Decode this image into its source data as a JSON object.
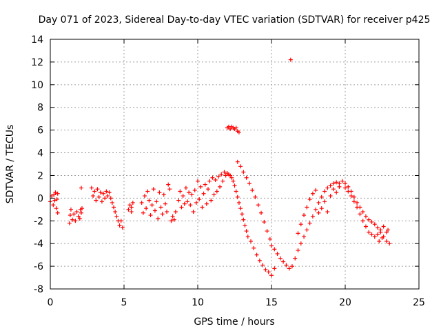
{
  "chart_data": {
    "type": "scatter",
    "title": "Day 071 of 2023, Sidereal Day-to-day VTEC variation (SDTVAR) for receiver p425",
    "xlabel": "GPS time / hours",
    "ylabel": "SDTVAR / TECUs",
    "xlim": [
      0,
      25
    ],
    "ylim": [
      -8,
      14
    ],
    "xticks": [
      0,
      5,
      10,
      15,
      20,
      25
    ],
    "yticks": [
      -8,
      -6,
      -4,
      -2,
      0,
      2,
      4,
      6,
      8,
      10,
      12,
      14
    ],
    "grid": true,
    "marker": "+",
    "series": [
      {
        "name": "SDTVAR",
        "color": "#ff0000",
        "points": [
          [
            0.0,
            -0.3
          ],
          [
            0.1,
            0.2
          ],
          [
            0.2,
            -0.6
          ],
          [
            0.25,
            0.3
          ],
          [
            0.3,
            -0.2
          ],
          [
            0.35,
            0.5
          ],
          [
            0.4,
            -0.9
          ],
          [
            0.45,
            -0.1
          ],
          [
            0.5,
            -1.3
          ],
          [
            0.5,
            0.4
          ],
          [
            1.3,
            -2.2
          ],
          [
            1.35,
            -1.5
          ],
          [
            1.4,
            -1.0
          ],
          [
            1.5,
            -1.9
          ],
          [
            1.6,
            -1.4
          ],
          [
            1.7,
            -2.0
          ],
          [
            1.8,
            -1.2
          ],
          [
            1.9,
            -1.6
          ],
          [
            2.0,
            -1.8
          ],
          [
            2.05,
            -1.0
          ],
          [
            2.1,
            -1.3
          ],
          [
            2.15,
            -0.9
          ],
          [
            2.1,
            0.9
          ],
          [
            2.8,
            0.9
          ],
          [
            2.9,
            0.2
          ],
          [
            3.0,
            0.6
          ],
          [
            3.1,
            -0.2
          ],
          [
            3.2,
            0.8
          ],
          [
            3.3,
            0.1
          ],
          [
            3.4,
            0.5
          ],
          [
            3.5,
            -0.3
          ],
          [
            3.6,
            0.4
          ],
          [
            3.7,
            0.0
          ],
          [
            3.8,
            0.6
          ],
          [
            3.9,
            0.2
          ],
          [
            4.0,
            0.5
          ],
          [
            4.1,
            0.0
          ],
          [
            4.2,
            -0.4
          ],
          [
            4.3,
            -0.8
          ],
          [
            4.4,
            -1.2
          ],
          [
            4.5,
            -1.6
          ],
          [
            4.6,
            -2.0
          ],
          [
            4.7,
            -2.4
          ],
          [
            4.8,
            -2.0
          ],
          [
            4.9,
            -2.6
          ],
          [
            5.3,
            -1.0
          ],
          [
            5.4,
            -0.6
          ],
          [
            5.5,
            -1.2
          ],
          [
            5.6,
            -0.4
          ],
          [
            5.5,
            -0.8
          ],
          [
            6.2,
            -0.4
          ],
          [
            6.3,
            -1.3
          ],
          [
            6.4,
            0.2
          ],
          [
            6.5,
            -0.9
          ],
          [
            6.6,
            0.6
          ],
          [
            6.7,
            -0.2
          ],
          [
            6.8,
            -1.5
          ],
          [
            6.9,
            -0.6
          ],
          [
            7.0,
            0.8
          ],
          [
            7.1,
            -1.1
          ],
          [
            7.2,
            -0.3
          ],
          [
            7.3,
            -1.8
          ],
          [
            7.4,
            0.5
          ],
          [
            7.5,
            -0.8
          ],
          [
            7.6,
            -1.4
          ],
          [
            7.7,
            0.3
          ],
          [
            7.8,
            -0.5
          ],
          [
            7.9,
            -1.2
          ],
          [
            8.0,
            1.2
          ],
          [
            8.1,
            0.8
          ],
          [
            8.2,
            -2.0
          ],
          [
            8.3,
            -1.6
          ],
          [
            8.4,
            -1.9
          ],
          [
            8.5,
            -1.2
          ],
          [
            8.7,
            -0.2
          ],
          [
            8.8,
            0.6
          ],
          [
            8.9,
            -0.8
          ],
          [
            9.0,
            0.2
          ],
          [
            9.1,
            -0.5
          ],
          [
            9.2,
            0.9
          ],
          [
            9.3,
            -0.3
          ],
          [
            9.4,
            0.5
          ],
          [
            9.5,
            -0.6
          ],
          [
            9.6,
            0.3
          ],
          [
            9.7,
            -1.2
          ],
          [
            9.8,
            0.7
          ],
          [
            9.9,
            -0.4
          ],
          [
            10.0,
            1.5
          ],
          [
            10.1,
            -0.1
          ],
          [
            10.2,
            1.0
          ],
          [
            10.3,
            -0.8
          ],
          [
            10.4,
            0.4
          ],
          [
            10.5,
            1.2
          ],
          [
            10.6,
            -0.5
          ],
          [
            10.7,
            0.8
          ],
          [
            10.8,
            1.5
          ],
          [
            10.9,
            -0.2
          ],
          [
            11.0,
            1.8
          ],
          [
            11.1,
            0.3
          ],
          [
            11.2,
            1.6
          ],
          [
            11.3,
            0.6
          ],
          [
            11.4,
            1.9
          ],
          [
            11.5,
            1.0
          ],
          [
            11.6,
            2.1
          ],
          [
            11.7,
            1.5
          ],
          [
            11.8,
            2.3
          ],
          [
            11.9,
            2.0
          ],
          [
            12.0,
            2.2
          ],
          [
            12.1,
            2.1
          ],
          [
            12.2,
            2.0
          ],
          [
            12.3,
            1.8
          ],
          [
            12.4,
            1.5
          ],
          [
            12.5,
            1.1
          ],
          [
            12.6,
            0.6
          ],
          [
            12.7,
            0.1
          ],
          [
            12.8,
            -0.4
          ],
          [
            12.9,
            -0.9
          ],
          [
            13.0,
            -1.4
          ],
          [
            13.1,
            -1.9
          ],
          [
            13.2,
            -2.4
          ],
          [
            13.3,
            -2.9
          ],
          [
            13.4,
            -3.4
          ],
          [
            12.0,
            6.2
          ],
          [
            12.1,
            6.3
          ],
          [
            12.2,
            6.1
          ],
          [
            12.3,
            6.3
          ],
          [
            12.4,
            6.2
          ],
          [
            12.5,
            6.1
          ],
          [
            12.6,
            6.2
          ],
          [
            12.7,
            5.9
          ],
          [
            12.8,
            5.8
          ],
          [
            12.7,
            3.2
          ],
          [
            12.9,
            2.8
          ],
          [
            13.1,
            2.3
          ],
          [
            13.3,
            1.8
          ],
          [
            13.5,
            1.3
          ],
          [
            13.7,
            0.7
          ],
          [
            13.9,
            0.1
          ],
          [
            14.1,
            -0.6
          ],
          [
            14.3,
            -1.3
          ],
          [
            14.5,
            -2.1
          ],
          [
            14.7,
            -2.9
          ],
          [
            14.9,
            -3.6
          ],
          [
            15.0,
            -4.2
          ],
          [
            15.2,
            -4.5
          ],
          [
            15.4,
            -4.9
          ],
          [
            13.6,
            -3.8
          ],
          [
            13.8,
            -4.4
          ],
          [
            14.0,
            -5.0
          ],
          [
            14.2,
            -5.5
          ],
          [
            14.4,
            -5.9
          ],
          [
            14.6,
            -6.3
          ],
          [
            14.8,
            -6.5
          ],
          [
            15.0,
            -6.8
          ],
          [
            15.2,
            -6.2
          ],
          [
            16.3,
            12.2
          ],
          [
            15.6,
            -5.3
          ],
          [
            15.8,
            -5.6
          ],
          [
            16.0,
            -5.9
          ],
          [
            16.2,
            -6.2
          ],
          [
            16.4,
            -6.0
          ],
          [
            16.6,
            -5.3
          ],
          [
            16.8,
            -4.6
          ],
          [
            17.0,
            -4.0
          ],
          [
            17.2,
            -3.4
          ],
          [
            17.4,
            -2.8
          ],
          [
            17.6,
            -2.2
          ],
          [
            17.8,
            -1.6
          ],
          [
            18.0,
            -1.0
          ],
          [
            18.2,
            -0.4
          ],
          [
            18.4,
            0.1
          ],
          [
            18.6,
            0.6
          ],
          [
            18.8,
            0.9
          ],
          [
            19.0,
            1.1
          ],
          [
            19.2,
            1.3
          ],
          [
            19.4,
            1.4
          ],
          [
            19.6,
            1.3
          ],
          [
            19.8,
            1.5
          ],
          [
            20.0,
            1.3
          ],
          [
            20.2,
            1.0
          ],
          [
            20.4,
            0.6
          ],
          [
            20.6,
            0.1
          ],
          [
            20.8,
            -0.4
          ],
          [
            21.0,
            -0.8
          ],
          [
            21.2,
            -1.2
          ],
          [
            21.4,
            -1.6
          ],
          [
            21.6,
            -1.9
          ],
          [
            21.8,
            -2.1
          ],
          [
            22.0,
            -2.3
          ],
          [
            22.2,
            -2.6
          ],
          [
            22.4,
            -3.0
          ],
          [
            22.6,
            -3.4
          ],
          [
            22.8,
            -3.8
          ],
          [
            23.0,
            -4.0
          ],
          [
            16.8,
            -3.1
          ],
          [
            17.0,
            -2.3
          ],
          [
            17.2,
            -1.5
          ],
          [
            17.4,
            -0.8
          ],
          [
            17.6,
            -0.1
          ],
          [
            17.8,
            0.4
          ],
          [
            18.0,
            0.7
          ],
          [
            18.2,
            -1.3
          ],
          [
            18.4,
            -0.9
          ],
          [
            18.6,
            -0.3
          ],
          [
            18.8,
            -1.2
          ],
          [
            19.0,
            0.2
          ],
          [
            19.2,
            0.8
          ],
          [
            19.4,
            0.5
          ],
          [
            19.6,
            1.0
          ],
          [
            20.0,
            0.9
          ],
          [
            20.2,
            0.6
          ],
          [
            20.4,
            0.2
          ],
          [
            20.6,
            -0.3
          ],
          [
            20.8,
            -0.8
          ],
          [
            21.0,
            -1.4
          ],
          [
            21.2,
            -2.0
          ],
          [
            21.4,
            -2.5
          ],
          [
            21.6,
            -3.0
          ],
          [
            21.8,
            -3.2
          ],
          [
            22.0,
            -3.4
          ],
          [
            22.2,
            -3.2
          ],
          [
            22.4,
            -2.8
          ],
          [
            22.6,
            -2.5
          ],
          [
            22.8,
            -3.0
          ],
          [
            22.9,
            -2.8
          ],
          [
            22.3,
            -3.8
          ],
          [
            22.5,
            -3.5
          ]
        ]
      }
    ]
  }
}
